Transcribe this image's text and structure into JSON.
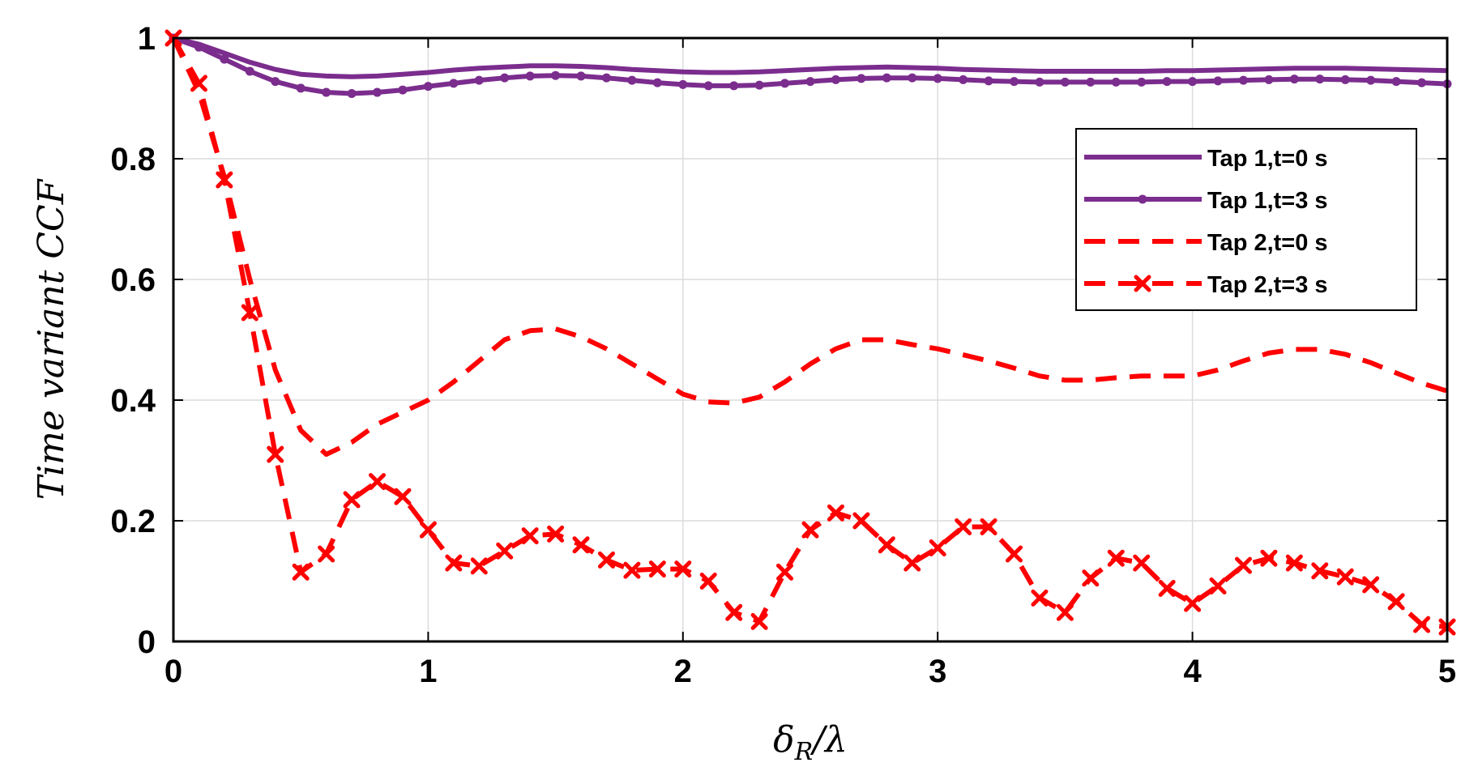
{
  "chart_data": {
    "type": "line",
    "title": "",
    "xlabel": {
      "main": "δ",
      "sub": "R",
      "rest": "/λ"
    },
    "ylabel": "Time variant CCF",
    "xlim": [
      0,
      5
    ],
    "ylim": [
      0,
      1
    ],
    "xticks": [
      0,
      1,
      2,
      3,
      4,
      5
    ],
    "xtick_labels": [
      "0",
      "1",
      "2",
      "3",
      "4",
      "5"
    ],
    "yticks": [
      0,
      0.2,
      0.4,
      0.6,
      0.8,
      1
    ],
    "ytick_labels": [
      "0",
      "0.2",
      "0.4",
      "0.6",
      "0.8",
      "1"
    ],
    "grid": true,
    "legend_position": "right, upper-middle",
    "series": [
      {
        "name": "Tap 1,t=0 s",
        "color": "#7b2d8e",
        "style": "solid",
        "marker": "none",
        "x": [
          0,
          0.1,
          0.2,
          0.3,
          0.4,
          0.5,
          0.6,
          0.7,
          0.8,
          0.9,
          1.0,
          1.1,
          1.2,
          1.3,
          1.4,
          1.5,
          1.6,
          1.7,
          1.8,
          1.9,
          2.0,
          2.1,
          2.2,
          2.3,
          2.4,
          2.5,
          2.6,
          2.7,
          2.8,
          2.9,
          3.0,
          3.1,
          3.2,
          3.3,
          3.4,
          3.5,
          3.6,
          3.7,
          3.8,
          3.9,
          4.0,
          4.1,
          4.2,
          4.3,
          4.4,
          4.5,
          4.6,
          4.7,
          4.8,
          4.9,
          5.0
        ],
        "values": [
          1.0,
          0.99,
          0.975,
          0.96,
          0.948,
          0.94,
          0.937,
          0.936,
          0.937,
          0.94,
          0.943,
          0.947,
          0.95,
          0.952,
          0.954,
          0.954,
          0.953,
          0.951,
          0.948,
          0.946,
          0.944,
          0.943,
          0.943,
          0.944,
          0.946,
          0.948,
          0.95,
          0.951,
          0.952,
          0.951,
          0.95,
          0.948,
          0.947,
          0.946,
          0.945,
          0.945,
          0.945,
          0.945,
          0.945,
          0.946,
          0.946,
          0.947,
          0.948,
          0.949,
          0.95,
          0.95,
          0.95,
          0.949,
          0.948,
          0.947,
          0.946
        ]
      },
      {
        "name": "Tap 1,t=3 s",
        "color": "#7b2d8e",
        "style": "solid",
        "marker": "dot",
        "x": [
          0,
          0.1,
          0.2,
          0.3,
          0.4,
          0.5,
          0.6,
          0.7,
          0.8,
          0.9,
          1.0,
          1.1,
          1.2,
          1.3,
          1.4,
          1.5,
          1.6,
          1.7,
          1.8,
          1.9,
          2.0,
          2.1,
          2.2,
          2.3,
          2.4,
          2.5,
          2.6,
          2.7,
          2.8,
          2.9,
          3.0,
          3.1,
          3.2,
          3.3,
          3.4,
          3.5,
          3.6,
          3.7,
          3.8,
          3.9,
          4.0,
          4.1,
          4.2,
          4.3,
          4.4,
          4.5,
          4.6,
          4.7,
          4.8,
          4.9,
          5.0
        ],
        "values": [
          1.0,
          0.985,
          0.965,
          0.945,
          0.928,
          0.917,
          0.91,
          0.908,
          0.91,
          0.914,
          0.92,
          0.925,
          0.93,
          0.934,
          0.937,
          0.938,
          0.937,
          0.934,
          0.93,
          0.926,
          0.923,
          0.921,
          0.921,
          0.922,
          0.925,
          0.928,
          0.931,
          0.933,
          0.934,
          0.934,
          0.933,
          0.931,
          0.929,
          0.928,
          0.927,
          0.927,
          0.927,
          0.927,
          0.927,
          0.928,
          0.928,
          0.929,
          0.93,
          0.931,
          0.932,
          0.932,
          0.931,
          0.93,
          0.928,
          0.926,
          0.924
        ]
      },
      {
        "name": "Tap 2,t=0 s",
        "color": "#ff0000",
        "style": "dashed",
        "marker": "none",
        "x": [
          0,
          0.1,
          0.2,
          0.3,
          0.4,
          0.5,
          0.6,
          0.7,
          0.8,
          0.9,
          1.0,
          1.1,
          1.2,
          1.3,
          1.4,
          1.5,
          1.6,
          1.7,
          1.8,
          1.9,
          2.0,
          2.1,
          2.2,
          2.3,
          2.4,
          2.5,
          2.6,
          2.7,
          2.8,
          2.9,
          3.0,
          3.1,
          3.2,
          3.3,
          3.4,
          3.5,
          3.6,
          3.7,
          3.8,
          3.9,
          4.0,
          4.1,
          4.2,
          4.3,
          4.4,
          4.5,
          4.6,
          4.7,
          4.8,
          4.9,
          5.0
        ],
        "values": [
          1.0,
          0.91,
          0.77,
          0.6,
          0.45,
          0.35,
          0.31,
          0.33,
          0.36,
          0.38,
          0.4,
          0.43,
          0.465,
          0.5,
          0.515,
          0.518,
          0.505,
          0.485,
          0.46,
          0.435,
          0.41,
          0.397,
          0.395,
          0.405,
          0.43,
          0.46,
          0.485,
          0.5,
          0.5,
          0.492,
          0.485,
          0.475,
          0.465,
          0.453,
          0.44,
          0.433,
          0.433,
          0.437,
          0.44,
          0.44,
          0.44,
          0.45,
          0.465,
          0.478,
          0.484,
          0.484,
          0.476,
          0.462,
          0.445,
          0.428,
          0.415
        ]
      },
      {
        "name": "Tap 2,t=3 s",
        "color": "#ff0000",
        "style": "dashed",
        "marker": "x",
        "x": [
          0,
          0.1,
          0.2,
          0.3,
          0.4,
          0.5,
          0.6,
          0.7,
          0.8,
          0.9,
          1.0,
          1.1,
          1.2,
          1.3,
          1.4,
          1.5,
          1.6,
          1.7,
          1.8,
          1.9,
          2.0,
          2.1,
          2.2,
          2.3,
          2.4,
          2.5,
          2.6,
          2.7,
          2.8,
          2.9,
          3.0,
          3.1,
          3.2,
          3.3,
          3.4,
          3.5,
          3.6,
          3.7,
          3.8,
          3.9,
          4.0,
          4.1,
          4.2,
          4.3,
          4.4,
          4.5,
          4.6,
          4.7,
          4.8,
          4.9,
          5.0
        ],
        "values": [
          1.0,
          0.925,
          0.765,
          0.545,
          0.31,
          0.115,
          0.145,
          0.235,
          0.265,
          0.24,
          0.185,
          0.13,
          0.125,
          0.15,
          0.175,
          0.178,
          0.16,
          0.135,
          0.118,
          0.12,
          0.12,
          0.1,
          0.048,
          0.033,
          0.115,
          0.185,
          0.213,
          0.2,
          0.16,
          0.13,
          0.155,
          0.19,
          0.19,
          0.145,
          0.072,
          0.048,
          0.105,
          0.138,
          0.13,
          0.088,
          0.063,
          0.092,
          0.126,
          0.138,
          0.13,
          0.117,
          0.107,
          0.094,
          0.066,
          0.028,
          0.024
        ]
      }
    ]
  }
}
